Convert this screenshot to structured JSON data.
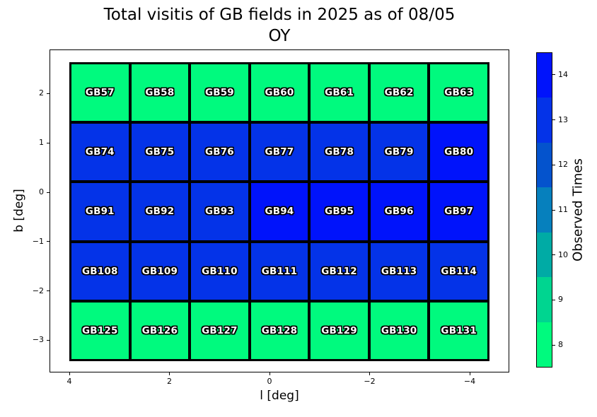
{
  "title": {
    "line1": "Total visitis of GB fields in 2025 as of 08/05",
    "line2": "OY"
  },
  "chart_data": {
    "type": "heatmap",
    "title": "Total visitis of GB fields in 2025 as of 08/05 OY",
    "xlabel": "l [deg]",
    "ylabel": "b [deg]",
    "colorbar_label": "Observed Times",
    "x_ticks": [
      {
        "label": "4",
        "value": 4
      },
      {
        "label": "2",
        "value": 2
      },
      {
        "label": "0",
        "value": 0
      },
      {
        "label": "−2",
        "value": -2
      },
      {
        "label": "−4",
        "value": -4
      }
    ],
    "y_ticks": [
      {
        "label": "2",
        "value": 2
      },
      {
        "label": "1",
        "value": 1
      },
      {
        "label": "0",
        "value": 0
      },
      {
        "label": "−1",
        "value": -1
      },
      {
        "label": "−2",
        "value": -2
      },
      {
        "label": "−3",
        "value": -3
      }
    ],
    "value_range": [
      8,
      14
    ],
    "grid_extent": {
      "l": [
        4.0,
        -4.4
      ],
      "b": [
        2.6,
        -3.4
      ]
    },
    "legend_position": "right",
    "color_scale": {
      "8": "#00FA7E",
      "9": "#00D590",
      "10": "#00ABA5",
      "11": "#0680BD",
      "12": "#0453CD",
      "13": "#0433E8",
      "14": "#0013FB"
    },
    "colorbar_ticks_top_to_bottom": [
      14,
      13,
      12,
      11,
      10,
      9,
      8
    ],
    "rows": [
      {
        "cells": [
          {
            "label": "GB57",
            "value": 8
          },
          {
            "label": "GB58",
            "value": 8
          },
          {
            "label": "GB59",
            "value": 8
          },
          {
            "label": "GB60",
            "value": 8
          },
          {
            "label": "GB61",
            "value": 8
          },
          {
            "label": "GB62",
            "value": 8
          },
          {
            "label": "GB63",
            "value": 8
          }
        ]
      },
      {
        "cells": [
          {
            "label": "GB74",
            "value": 13
          },
          {
            "label": "GB75",
            "value": 13
          },
          {
            "label": "GB76",
            "value": 13
          },
          {
            "label": "GB77",
            "value": 13
          },
          {
            "label": "GB78",
            "value": 13
          },
          {
            "label": "GB79",
            "value": 13
          },
          {
            "label": "GB80",
            "value": 14
          }
        ]
      },
      {
        "cells": [
          {
            "label": "GB91",
            "value": 13
          },
          {
            "label": "GB92",
            "value": 13
          },
          {
            "label": "GB93",
            "value": 13
          },
          {
            "label": "GB94",
            "value": 14
          },
          {
            "label": "GB95",
            "value": 14
          },
          {
            "label": "GB96",
            "value": 14
          },
          {
            "label": "GB97",
            "value": 14
          }
        ]
      },
      {
        "cells": [
          {
            "label": "GB108",
            "value": 13
          },
          {
            "label": "GB109",
            "value": 13
          },
          {
            "label": "GB110",
            "value": 13
          },
          {
            "label": "GB111",
            "value": 13
          },
          {
            "label": "GB112",
            "value": 13
          },
          {
            "label": "GB113",
            "value": 13
          },
          {
            "label": "GB114",
            "value": 13
          }
        ]
      },
      {
        "cells": [
          {
            "label": "GB125",
            "value": 8
          },
          {
            "label": "GB126",
            "value": 8
          },
          {
            "label": "GB127",
            "value": 8
          },
          {
            "label": "GB128",
            "value": 8
          },
          {
            "label": "GB129",
            "value": 8
          },
          {
            "label": "GB130",
            "value": 8
          },
          {
            "label": "GB131",
            "value": 8
          }
        ]
      }
    ]
  }
}
